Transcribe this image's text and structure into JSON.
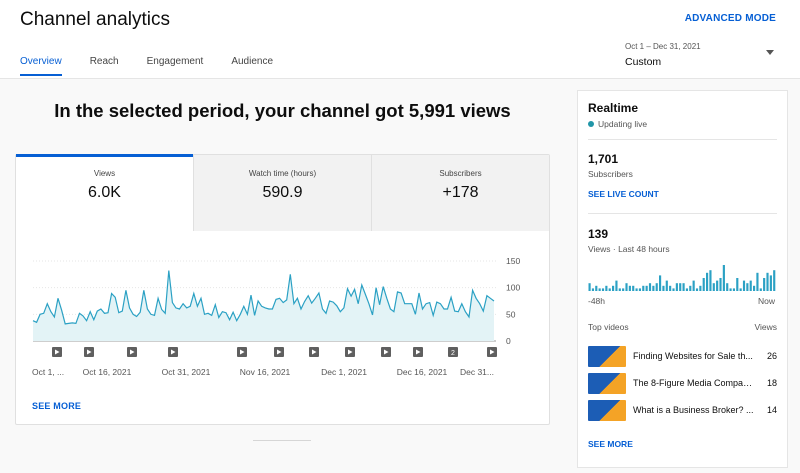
{
  "header": {
    "title": "Channel analytics",
    "advanced_mode": "ADVANCED MODE",
    "tabs": [
      {
        "label": "Overview",
        "active": true
      },
      {
        "label": "Reach",
        "active": false
      },
      {
        "label": "Engagement",
        "active": false
      },
      {
        "label": "Audience",
        "active": false
      }
    ],
    "date_range": {
      "sub": "Oct 1 – Dec 31, 2021",
      "value": "Custom"
    }
  },
  "main": {
    "headline": "In the selected period, your channel got 5,991 views",
    "metrics": [
      {
        "label": "Views",
        "value": "6.0K",
        "active": true
      },
      {
        "label": "Watch time (hours)",
        "value": "590.9",
        "active": false
      },
      {
        "label": "Subscribers",
        "value": "+178",
        "active": false
      }
    ],
    "see_more": "SEE MORE"
  },
  "chart_data": {
    "type": "area",
    "title": "",
    "xlabel": "",
    "ylabel": "",
    "ylim": [
      0,
      150
    ],
    "yticks": [
      0,
      50,
      100,
      150
    ],
    "xticks": [
      "Oct 1, ...",
      "Oct 16, 2021",
      "Oct 31, 2021",
      "Nov 16, 2021",
      "Dec 1, 2021",
      "Dec 16, 2021",
      "Dec 31..."
    ],
    "x_start": "2021-10-01",
    "x_end": "2021-12-31",
    "series": [
      {
        "values": [
          38,
          35,
          50,
          52,
          70,
          55,
          45,
          80,
          58,
          32,
          33,
          34,
          33,
          52,
          47,
          38,
          55,
          40,
          56,
          60,
          52,
          53,
          89,
          82,
          53,
          56,
          95,
          62,
          50,
          46,
          54,
          95,
          60,
          50,
          48,
          80,
          59,
          52,
          132,
          72,
          62,
          60,
          70,
          62,
          65,
          89,
          65,
          80,
          50,
          52,
          48,
          68,
          44,
          55,
          53,
          40,
          54,
          38,
          50,
          65,
          50,
          86,
          48,
          75,
          65,
          62,
          60,
          60,
          78,
          80,
          72,
          77,
          125,
          70,
          80,
          60,
          74,
          85,
          71,
          80,
          90,
          60,
          52,
          75,
          73,
          66,
          55,
          62,
          98,
          84,
          97,
          70,
          105,
          88,
          70,
          49,
          100,
          68,
          102,
          80,
          60,
          55,
          92,
          90,
          70,
          70,
          70,
          50,
          90,
          60,
          70,
          72,
          48,
          73,
          70,
          60,
          60,
          82,
          56,
          55,
          70,
          55,
          45,
          95,
          80,
          70,
          56,
          85,
          80,
          75
        ]
      }
    ],
    "colors": {
      "line": "#2ba1c4",
      "fill": "#e3f3f6",
      "video_marker": "#5f5f5f",
      "accent": "#065fd4"
    },
    "video_markers": [
      {
        "label": "",
        "index": 0
      },
      {
        "label": "",
        "index": 1
      },
      {
        "label": "",
        "index": 2
      },
      {
        "label": "",
        "index": 3
      },
      {
        "label": "",
        "index": 4
      },
      {
        "label": "",
        "index": 5
      },
      {
        "label": "",
        "index": 6
      },
      {
        "label": "",
        "index": 7
      },
      {
        "label": "",
        "index": 8
      },
      {
        "label": "",
        "index": 9
      },
      {
        "label": "2",
        "index": 10
      },
      {
        "label": "",
        "index": 11
      }
    ]
  },
  "realtime": {
    "title": "Realtime",
    "status": "Updating live",
    "subscribers": {
      "value": "1,701",
      "label": "Subscribers"
    },
    "see_live": "SEE LIVE COUNT",
    "views48": {
      "value": "139",
      "label": "Views · Last 48 hours"
    },
    "axis_left": "-48h",
    "axis_right": "Now",
    "hourly_bars": [
      3,
      1,
      2,
      1,
      1,
      2,
      1,
      2,
      4,
      1,
      1,
      3,
      2,
      2,
      1,
      1,
      2,
      2,
      3,
      2,
      3,
      6,
      2,
      4,
      2,
      1,
      3,
      3,
      3,
      1,
      2,
      4,
      1,
      2,
      5,
      7,
      8,
      3,
      4,
      5,
      10,
      3,
      1,
      1,
      5,
      1,
      4,
      3,
      4,
      2,
      7,
      1,
      5,
      7,
      6,
      8
    ],
    "top_videos_label": "Top videos",
    "views_label": "Views",
    "top_videos": [
      {
        "title": "Finding Websites for Sale th...",
        "views": "26"
      },
      {
        "title": "The 8-Figure Media Compan...",
        "views": "18"
      },
      {
        "title": "What is a Business Broker? ...",
        "views": "14"
      }
    ],
    "see_more": "SEE MORE"
  }
}
